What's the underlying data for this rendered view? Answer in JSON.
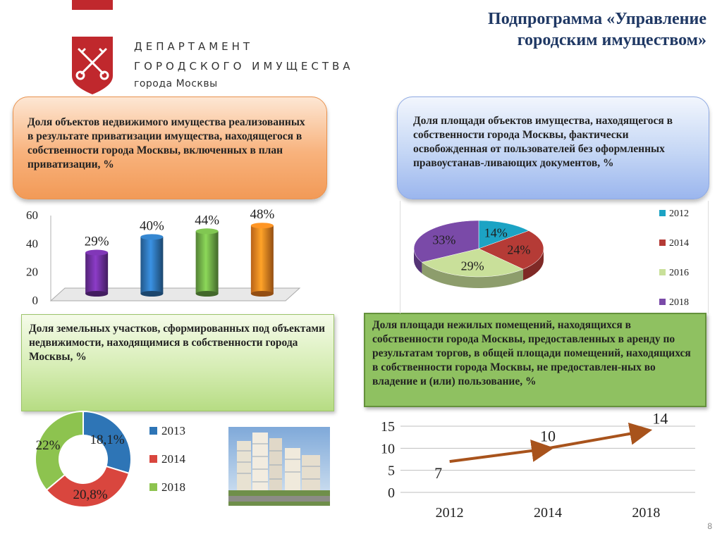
{
  "header": {
    "title_line1": "Подпрограмма «Управление",
    "title_line2": "городским имуществом»",
    "logo_line1": "ДЕПАРТАМЕНТ",
    "logo_line2": "ГОРОДСКОГО ИМУЩЕСТВА",
    "logo_line3": "города Москвы"
  },
  "boxes": {
    "orange": "Доля объектов недвижимого имущества реализованных в результате приватизации имущества, находящегося в собственности города Москвы, включенных в план приватизации, %",
    "blue": "Доля площади объектов имущества, находящегося в собственности города Москвы, фактически освобожденная от пользователей без оформленных правоустанав-ливающих документов, %",
    "green": "Доля земельных участков, сформированных под объектами недвижимости, находящимися в собственности города Москвы, %",
    "dark": "Доля площади нежилых помещений, находящихся в собственности города Москвы, предоставленных в аренду по результатам торгов, в общей площади помещений, находящихся в собственности города Москвы, не предоставлен-ных во владение и (или) пользование, %"
  },
  "colors": {
    "purple": "#7030a0",
    "blue": "#2e75b6",
    "green": "#70ad47",
    "orange": "#f58220",
    "teal": "#1ca3c4",
    "red": "#b53b36",
    "lime": "#c9e09a",
    "violet": "#7a4aa8",
    "brown": "#a8531c",
    "logo_red": "#c0282d"
  },
  "chart_data": [
    {
      "type": "bar",
      "categories": [
        "",
        "",
        "",
        ""
      ],
      "values": [
        29,
        40,
        44,
        48
      ],
      "labels": [
        "29%",
        "40%",
        "44%",
        "48%"
      ],
      "ylim": [
        0,
        60
      ],
      "yticks": [
        "0",
        "20",
        "40",
        "60"
      ],
      "colors": [
        "#7030a0",
        "#2e75b6",
        "#70ad47",
        "#f58220"
      ]
    },
    {
      "type": "pie",
      "categories": [
        "2012",
        "2014",
        "2016",
        "2018"
      ],
      "values": [
        14,
        24,
        29,
        33
      ],
      "labels": [
        "14%",
        "24%",
        "29%",
        "33%"
      ],
      "colors": [
        "#1ca3c4",
        "#b53b36",
        "#c9e09a",
        "#7a4aa8"
      ],
      "legend_position": "right"
    },
    {
      "type": "pie",
      "style": "donut",
      "categories": [
        "2013",
        "2014",
        "2018"
      ],
      "values": [
        18.1,
        20.8,
        22
      ],
      "labels": [
        "18,1%",
        "20,8%",
        "22%"
      ],
      "colors": [
        "#2e75b6",
        "#d9463e",
        "#8dc34f"
      ],
      "legend_position": "right"
    },
    {
      "type": "line",
      "x": [
        "2012",
        "2014",
        "2018"
      ],
      "values": [
        7,
        10,
        14
      ],
      "labels": [
        "7",
        "10",
        "14"
      ],
      "ylim": [
        0,
        15
      ],
      "yticks": [
        "0",
        "5",
        "10",
        "15"
      ],
      "color": "#a8531c"
    }
  ],
  "page": {
    "number": "8"
  }
}
